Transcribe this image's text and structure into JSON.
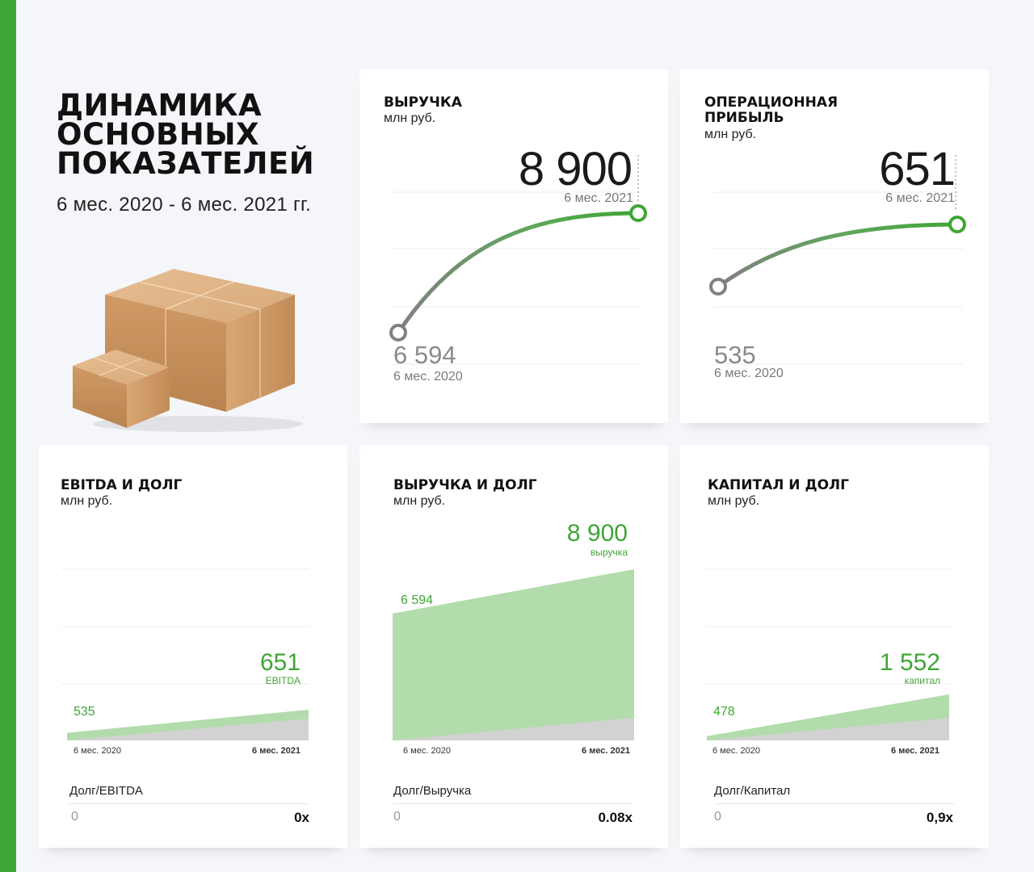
{
  "header": {
    "title_line1": "ДИНАМИКА",
    "title_line2": "ОСНОВНЫХ",
    "title_line3": "ПОКАЗАТЕЛЕЙ",
    "period": "6 мес. 2020 - 6 мес. 2021 гг."
  },
  "colors": {
    "accent": "#3fa535",
    "area_green": "#b2dcab",
    "area_grey": "#d2d2d2",
    "start_grey": "#808080"
  },
  "cards": {
    "revenue": {
      "title": "ВЫРУЧКА",
      "unit": "млн руб.",
      "end_value": "8 900",
      "end_label": "6 мес. 2021",
      "start_value": "6 594",
      "start_label": "6 мес. 2020"
    },
    "op_profit": {
      "title_line1": "ОПЕРАЦИОННАЯ",
      "title_line2": "ПРИБЫЛЬ",
      "unit": "млн руб.",
      "end_value": "651",
      "end_label": "6 мес. 2021",
      "start_value": "535",
      "start_label": "6 мес. 2020"
    },
    "ebitda_debt": {
      "title": "EBITDA И ДОЛГ",
      "unit": "млн руб.",
      "end_value": "651",
      "end_label": "EBITDA",
      "start_value": "535",
      "x_start": "6 мес. 2020",
      "x_end": "6 мес. 2021",
      "ratio_name": "Долг/EBITDA",
      "ratio_start": "0",
      "ratio_end": "0x"
    },
    "revenue_debt": {
      "title": "ВЫРУЧКА И ДОЛГ",
      "unit": "млн руб.",
      "end_value": "8 900",
      "end_label": "выручка",
      "start_value": "6 594",
      "x_start": "6 мес. 2020",
      "x_end": "6 мес. 2021",
      "ratio_name": "Долг/Выручка",
      "ratio_start": "0",
      "ratio_end": "0.08x"
    },
    "capital_debt": {
      "title": "КАПИТАЛ И ДОЛГ",
      "unit": "млн руб.",
      "end_value": "1 552",
      "end_label": "капитал",
      "start_value": "478",
      "x_start": "6 мес. 2020",
      "x_end": "6 мес. 2021",
      "ratio_name": "Долг/Капитал",
      "ratio_start": "0",
      "ratio_end": "0,9x"
    }
  },
  "chart_data": [
    {
      "type": "line",
      "title": "ВЫРУЧКА",
      "ylabel": "млн руб.",
      "categories": [
        "6 мес. 2020",
        "6 мес. 2021"
      ],
      "values": [
        6594,
        8900
      ]
    },
    {
      "type": "line",
      "title": "ОПЕРАЦИОННАЯ ПРИБЫЛЬ",
      "ylabel": "млн руб.",
      "categories": [
        "6 мес. 2020",
        "6 мес. 2021"
      ],
      "values": [
        535,
        651
      ]
    },
    {
      "type": "area",
      "title": "EBITDA И ДОЛГ",
      "ylabel": "млн руб.",
      "categories": [
        "6 мес. 2020",
        "6 мес. 2021"
      ],
      "series": [
        {
          "name": "EBITDA",
          "values": [
            535,
            651
          ]
        }
      ],
      "ratio": {
        "name": "Долг/EBITDA",
        "values": [
          0,
          0
        ]
      }
    },
    {
      "type": "area",
      "title": "ВЫРУЧКА И ДОЛГ",
      "ylabel": "млн руб.",
      "categories": [
        "6 мес. 2020",
        "6 мес. 2021"
      ],
      "series": [
        {
          "name": "выручка",
          "values": [
            6594,
            8900
          ]
        }
      ],
      "ratio": {
        "name": "Долг/Выручка",
        "values": [
          0,
          0.08
        ]
      }
    },
    {
      "type": "area",
      "title": "КАПИТАЛ И ДОЛГ",
      "ylabel": "млн руб.",
      "categories": [
        "6 мес. 2020",
        "6 мес. 2021"
      ],
      "series": [
        {
          "name": "капитал",
          "values": [
            478,
            1552
          ]
        }
      ],
      "ratio": {
        "name": "Долг/Капитал",
        "values": [
          0,
          0.9
        ]
      }
    }
  ]
}
